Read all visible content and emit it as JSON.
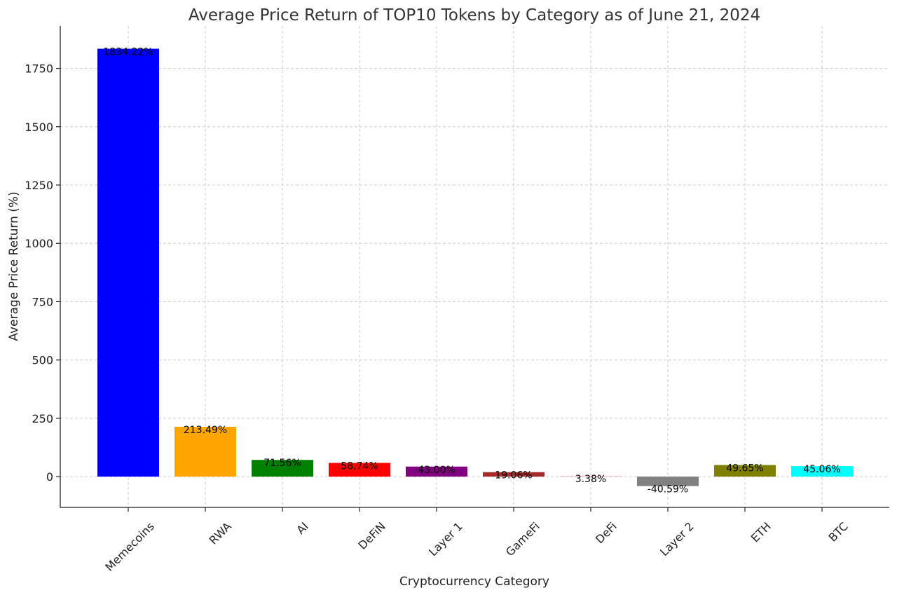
{
  "chart_data": {
    "type": "bar",
    "title": "Average Price Return of TOP10 Tokens by Category as of June 21, 2024",
    "xlabel": "Cryptocurrency Category",
    "ylabel": "Average Price Return (%)",
    "categories": [
      "Memecoins",
      "RWA",
      "AI",
      "DeFiN",
      "Layer 1",
      "GameFi",
      "DeFi",
      "Layer 2",
      "ETH",
      "BTC"
    ],
    "values": [
      1834.22,
      213.49,
      71.56,
      58.74,
      43.0,
      19.06,
      3.38,
      -40.59,
      49.65,
      45.06
    ],
    "data_labels": [
      "1834.22%",
      "213.49%",
      "71.56%",
      "58.74%",
      "43.00%",
      "19.06%",
      "3.38%",
      "-40.59%",
      "49.65%",
      "45.06%"
    ],
    "colors": [
      "#0000ff",
      "#ffa500",
      "#008000",
      "#ff0000",
      "#800080",
      "#a52a2a",
      "#ffc0cb",
      "#808080",
      "#808000",
      "#00ffff"
    ],
    "ylim": [
      -132,
      1932
    ],
    "yticks": [
      0,
      250,
      500,
      750,
      1000,
      1250,
      1500,
      1750
    ],
    "grid": true,
    "legend": "none"
  }
}
